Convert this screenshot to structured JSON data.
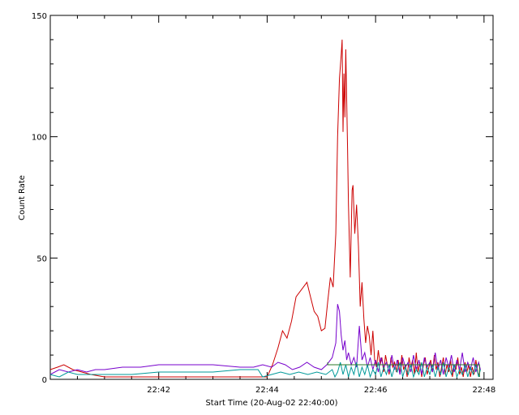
{
  "chart_data": {
    "type": "line",
    "xlabel": "Start Time (20-Aug-02 22:40:00)",
    "ylabel": "Count Rate",
    "xlim": [
      "22:40:00",
      "22:48:10"
    ],
    "ylim": [
      0,
      150
    ],
    "x_tick_labels": [
      {
        "t": "22:42:00",
        "label": "22:42"
      },
      {
        "t": "22:44:00",
        "label": "22:44"
      },
      {
        "t": "22:46:00",
        "label": "22:46"
      },
      {
        "t": "22:48:00",
        "label": "22:48"
      }
    ],
    "y_tick_labels": [
      {
        "v": 0,
        "label": "0"
      },
      {
        "v": 50,
        "label": "50"
      },
      {
        "v": 100,
        "label": "100"
      },
      {
        "v": 150,
        "label": "150"
      }
    ],
    "series": [
      {
        "color": "#cc0000",
        "points": [
          [
            "22:40:00",
            4
          ],
          [
            "22:40:08",
            5
          ],
          [
            "22:40:15",
            6
          ],
          [
            "22:40:25",
            4
          ],
          [
            "22:40:35",
            3
          ],
          [
            "22:40:45",
            2
          ],
          [
            "22:41:00",
            1
          ],
          [
            "22:41:15",
            1
          ],
          [
            "22:41:30",
            1
          ],
          [
            "22:42:00",
            1
          ],
          [
            "22:42:30",
            1
          ],
          [
            "22:43:00",
            1
          ],
          [
            "22:43:30",
            1
          ],
          [
            "22:43:50",
            1
          ],
          [
            "22:44:00",
            1
          ],
          [
            "22:44:06",
            6
          ],
          [
            "22:44:12",
            13
          ],
          [
            "22:44:17",
            20
          ],
          [
            "22:44:22",
            17
          ],
          [
            "22:44:27",
            24
          ],
          [
            "22:44:32",
            34
          ],
          [
            "22:44:40",
            38
          ],
          [
            "22:44:44",
            40
          ],
          [
            "22:44:48",
            34
          ],
          [
            "22:44:52",
            28
          ],
          [
            "22:44:56",
            26
          ],
          [
            "22:45:00",
            20
          ],
          [
            "22:45:04",
            21
          ],
          [
            "22:45:07",
            32
          ],
          [
            "22:45:10",
            42
          ],
          [
            "22:45:13",
            38
          ],
          [
            "22:45:16",
            60
          ],
          [
            "22:45:18",
            100
          ],
          [
            "22:45:20",
            124
          ],
          [
            "22:45:22",
            134
          ],
          [
            "22:45:23",
            140
          ],
          [
            "22:45:24",
            102
          ],
          [
            "22:45:25",
            126
          ],
          [
            "22:45:26",
            108
          ],
          [
            "22:45:27",
            136
          ],
          [
            "22:45:29",
            95
          ],
          [
            "22:45:30",
            72
          ],
          [
            "22:45:32",
            42
          ],
          [
            "22:45:34",
            78
          ],
          [
            "22:45:35",
            80
          ],
          [
            "22:45:37",
            60
          ],
          [
            "22:45:39",
            72
          ],
          [
            "22:45:41",
            55
          ],
          [
            "22:45:43",
            30
          ],
          [
            "22:45:45",
            40
          ],
          [
            "22:45:47",
            25
          ],
          [
            "22:45:49",
            15
          ],
          [
            "22:45:51",
            22
          ],
          [
            "22:45:53",
            18
          ],
          [
            "22:45:55",
            10
          ],
          [
            "22:45:57",
            20
          ],
          [
            "22:45:59",
            8
          ],
          [
            "22:46:01",
            5
          ],
          [
            "22:46:03",
            12
          ],
          [
            "22:46:05",
            6
          ],
          [
            "22:46:07",
            9
          ],
          [
            "22:46:09",
            3
          ],
          [
            "22:46:11",
            10
          ],
          [
            "22:46:13",
            6
          ],
          [
            "22:46:15",
            2
          ],
          [
            "22:46:17",
            9
          ],
          [
            "22:46:19",
            5
          ],
          [
            "22:46:21",
            7
          ],
          [
            "22:46:23",
            3
          ],
          [
            "22:46:25",
            8
          ],
          [
            "22:46:27",
            2
          ],
          [
            "22:46:29",
            10
          ],
          [
            "22:46:31",
            4
          ],
          [
            "22:46:33",
            6
          ],
          [
            "22:46:35",
            1
          ],
          [
            "22:46:37",
            9
          ],
          [
            "22:46:39",
            5
          ],
          [
            "22:46:41",
            8
          ],
          [
            "22:46:43",
            2
          ],
          [
            "22:46:45",
            11
          ],
          [
            "22:46:47",
            3
          ],
          [
            "22:46:49",
            7
          ],
          [
            "22:46:51",
            1
          ],
          [
            "22:46:53",
            6
          ],
          [
            "22:46:55",
            9
          ],
          [
            "22:46:57",
            2
          ],
          [
            "22:46:59",
            5
          ],
          [
            "22:47:01",
            8
          ],
          [
            "22:47:03",
            3
          ],
          [
            "22:47:05",
            10
          ],
          [
            "22:47:07",
            4
          ],
          [
            "22:47:09",
            7
          ],
          [
            "22:47:11",
            1
          ],
          [
            "22:47:13",
            5
          ],
          [
            "22:47:15",
            9
          ],
          [
            "22:47:17",
            2
          ],
          [
            "22:47:19",
            6
          ],
          [
            "22:47:21",
            3
          ],
          [
            "22:47:23",
            8
          ],
          [
            "22:47:25",
            1
          ],
          [
            "22:47:27",
            6
          ],
          [
            "22:47:29",
            4
          ],
          [
            "22:47:31",
            9
          ],
          [
            "22:47:33",
            2
          ],
          [
            "22:47:35",
            5
          ],
          [
            "22:47:37",
            1
          ],
          [
            "22:47:39",
            7
          ],
          [
            "22:47:41",
            3
          ],
          [
            "22:47:43",
            6
          ],
          [
            "22:47:45",
            1
          ],
          [
            "22:47:47",
            5
          ],
          [
            "22:47:49",
            2
          ],
          [
            "22:47:51",
            8
          ],
          [
            "22:47:53",
            3
          ],
          [
            "22:47:55",
            1
          ]
        ]
      },
      {
        "color": "#7700cc",
        "points": [
          [
            "22:40:00",
            2
          ],
          [
            "22:40:10",
            4
          ],
          [
            "22:40:20",
            3
          ],
          [
            "22:40:30",
            4
          ],
          [
            "22:40:40",
            3
          ],
          [
            "22:40:50",
            4
          ],
          [
            "22:41:00",
            4
          ],
          [
            "22:41:20",
            5
          ],
          [
            "22:41:40",
            5
          ],
          [
            "22:42:00",
            6
          ],
          [
            "22:42:30",
            6
          ],
          [
            "22:43:00",
            6
          ],
          [
            "22:43:30",
            5
          ],
          [
            "22:43:45",
            5
          ],
          [
            "22:43:55",
            6
          ],
          [
            "22:44:05",
            5
          ],
          [
            "22:44:12",
            7
          ],
          [
            "22:44:20",
            6
          ],
          [
            "22:44:28",
            4
          ],
          [
            "22:44:36",
            5
          ],
          [
            "22:44:44",
            7
          ],
          [
            "22:44:52",
            5
          ],
          [
            "22:45:00",
            4
          ],
          [
            "22:45:06",
            6
          ],
          [
            "22:45:12",
            9
          ],
          [
            "22:45:16",
            15
          ],
          [
            "22:45:18",
            31
          ],
          [
            "22:45:20",
            28
          ],
          [
            "22:45:22",
            18
          ],
          [
            "22:45:24",
            12
          ],
          [
            "22:45:26",
            16
          ],
          [
            "22:45:28",
            8
          ],
          [
            "22:45:30",
            11
          ],
          [
            "22:45:33",
            6
          ],
          [
            "22:45:36",
            9
          ],
          [
            "22:45:39",
            5
          ],
          [
            "22:45:42",
            22
          ],
          [
            "22:45:45",
            8
          ],
          [
            "22:45:48",
            11
          ],
          [
            "22:45:51",
            5
          ],
          [
            "22:45:54",
            9
          ],
          [
            "22:45:57",
            4
          ],
          [
            "22:46:00",
            8
          ],
          [
            "22:46:03",
            3
          ],
          [
            "22:46:06",
            9
          ],
          [
            "22:46:09",
            5
          ],
          [
            "22:46:12",
            7
          ],
          [
            "22:46:15",
            3
          ],
          [
            "22:46:18",
            10
          ],
          [
            "22:46:21",
            4
          ],
          [
            "22:46:24",
            8
          ],
          [
            "22:46:27",
            2
          ],
          [
            "22:46:30",
            9
          ],
          [
            "22:46:33",
            5
          ],
          [
            "22:46:36",
            7
          ],
          [
            "22:46:39",
            3
          ],
          [
            "22:46:42",
            10
          ],
          [
            "22:46:45",
            4
          ],
          [
            "22:46:48",
            8
          ],
          [
            "22:46:51",
            2
          ],
          [
            "22:46:54",
            9
          ],
          [
            "22:46:57",
            5
          ],
          [
            "22:47:00",
            7
          ],
          [
            "22:47:03",
            3
          ],
          [
            "22:47:06",
            11
          ],
          [
            "22:47:09",
            4
          ],
          [
            "22:47:12",
            8
          ],
          [
            "22:47:15",
            2
          ],
          [
            "22:47:18",
            9
          ],
          [
            "22:47:21",
            5
          ],
          [
            "22:47:24",
            10
          ],
          [
            "22:47:27",
            3
          ],
          [
            "22:47:30",
            8
          ],
          [
            "22:47:33",
            4
          ],
          [
            "22:47:36",
            11
          ],
          [
            "22:47:39",
            3
          ],
          [
            "22:47:42",
            7
          ],
          [
            "22:47:45",
            4
          ],
          [
            "22:47:48",
            9
          ],
          [
            "22:47:51",
            3
          ],
          [
            "22:47:54",
            7
          ],
          [
            "22:47:56",
            4
          ]
        ]
      },
      {
        "color": "#009999",
        "points": [
          [
            "22:40:00",
            2
          ],
          [
            "22:40:10",
            1
          ],
          [
            "22:40:20",
            3
          ],
          [
            "22:40:30",
            2
          ],
          [
            "22:40:40",
            2
          ],
          [
            "22:41:00",
            2
          ],
          [
            "22:41:30",
            2
          ],
          [
            "22:42:00",
            3
          ],
          [
            "22:42:30",
            3
          ],
          [
            "22:43:00",
            3
          ],
          [
            "22:43:30",
            4
          ],
          [
            "22:43:50",
            4
          ],
          [
            "22:43:55",
            1
          ],
          [
            "22:44:05",
            2
          ],
          [
            "22:44:15",
            3
          ],
          [
            "22:44:25",
            2
          ],
          [
            "22:44:35",
            3
          ],
          [
            "22:44:45",
            2
          ],
          [
            "22:44:55",
            3
          ],
          [
            "22:45:05",
            2
          ],
          [
            "22:45:12",
            4
          ],
          [
            "22:45:15",
            1
          ],
          [
            "22:45:18",
            3
          ],
          [
            "22:45:21",
            7
          ],
          [
            "22:45:24",
            2
          ],
          [
            "22:45:27",
            6
          ],
          [
            "22:45:30",
            1
          ],
          [
            "22:45:33",
            5
          ],
          [
            "22:45:36",
            2
          ],
          [
            "22:45:39",
            7
          ],
          [
            "22:45:42",
            1
          ],
          [
            "22:45:45",
            5
          ],
          [
            "22:45:48",
            2
          ],
          [
            "22:45:51",
            6
          ],
          [
            "22:45:54",
            1
          ],
          [
            "22:45:57",
            4
          ],
          [
            "22:46:00",
            2
          ],
          [
            "22:46:03",
            7
          ],
          [
            "22:46:06",
            1
          ],
          [
            "22:46:09",
            5
          ],
          [
            "22:46:12",
            2
          ],
          [
            "22:46:15",
            6
          ],
          [
            "22:46:18",
            1
          ],
          [
            "22:46:21",
            5
          ],
          [
            "22:46:24",
            3
          ],
          [
            "22:46:27",
            7
          ],
          [
            "22:46:30",
            1
          ],
          [
            "22:46:33",
            5
          ],
          [
            "22:46:36",
            2
          ],
          [
            "22:46:39",
            6
          ],
          [
            "22:46:42",
            1
          ],
          [
            "22:46:45",
            4
          ],
          [
            "22:46:48",
            2
          ],
          [
            "22:46:51",
            7
          ],
          [
            "22:46:54",
            1
          ],
          [
            "22:46:57",
            5
          ],
          [
            "22:47:00",
            2
          ],
          [
            "22:47:03",
            6
          ],
          [
            "22:47:06",
            1
          ],
          [
            "22:47:09",
            5
          ],
          [
            "22:47:12",
            2
          ],
          [
            "22:47:15",
            7
          ],
          [
            "22:47:18",
            1
          ],
          [
            "22:47:21",
            5
          ],
          [
            "22:47:24",
            2
          ],
          [
            "22:47:27",
            6
          ],
          [
            "22:47:30",
            1
          ],
          [
            "22:47:33",
            4
          ],
          [
            "22:47:36",
            2
          ],
          [
            "22:47:39",
            6
          ],
          [
            "22:47:42",
            1
          ],
          [
            "22:47:45",
            5
          ],
          [
            "22:47:48",
            2
          ],
          [
            "22:47:51",
            6
          ],
          [
            "22:47:54",
            1
          ],
          [
            "22:47:56",
            4
          ]
        ]
      },
      {
        "color": "#2a7a2a",
        "points": [
          [
            "22:45:07",
            7
          ],
          [
            "22:45:07",
            6
          ],
          [
            "22:47:55",
            6
          ],
          [
            "22:47:55",
            1
          ]
        ]
      }
    ]
  }
}
